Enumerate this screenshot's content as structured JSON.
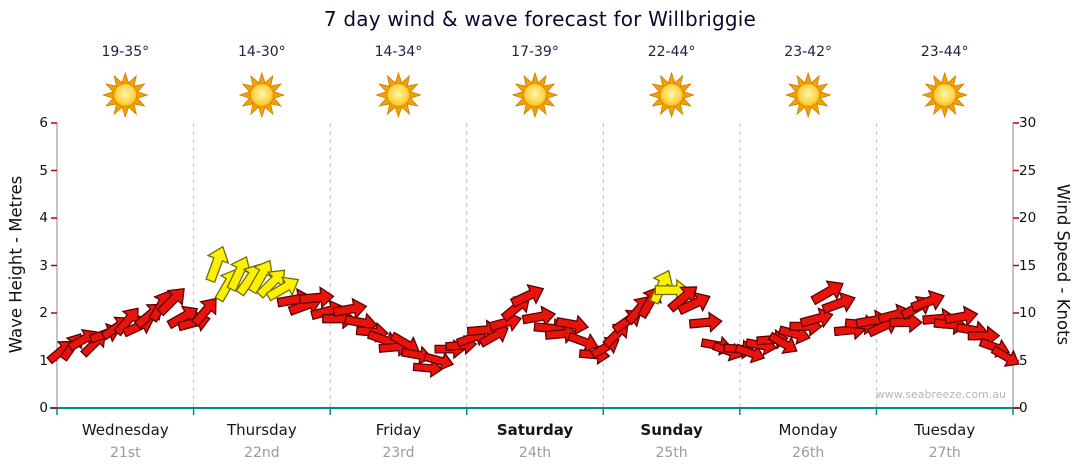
{
  "title": "7 day wind & wave forecast for Willbriggie",
  "watermark": "www.seabreeze.com.au",
  "axis_left": {
    "title": "Wave Height - Metres",
    "ticks": [
      "0",
      "1",
      "2",
      "3",
      "4",
      "5",
      "6"
    ]
  },
  "axis_right": {
    "title": "Wind Speed - Knots",
    "ticks": [
      "0",
      "5",
      "10",
      "15",
      "20",
      "25",
      "30"
    ]
  },
  "days": [
    {
      "name": "Wednesday",
      "date": "21st",
      "temp": "19-35°",
      "weekend": false
    },
    {
      "name": "Thursday",
      "date": "22nd",
      "temp": "14-30°",
      "weekend": false
    },
    {
      "name": "Friday",
      "date": "23rd",
      "temp": "14-34°",
      "weekend": false
    },
    {
      "name": "Saturday",
      "date": "24th",
      "temp": "17-39°",
      "weekend": true
    },
    {
      "name": "Sunday",
      "date": "25th",
      "temp": "22-44°",
      "weekend": true
    },
    {
      "name": "Monday",
      "date": "26th",
      "temp": "23-42°",
      "weekend": false
    },
    {
      "name": "Tuesday",
      "date": "27th",
      "temp": "23-44°",
      "weekend": false
    }
  ],
  "colors": {
    "arrow_red": "#e8140c",
    "arrow_red_outline": "#5e0000",
    "arrow_yellow": "#fff000",
    "arrow_yellow_outline": "#6e6e00",
    "axis_bottom": "#008b8b",
    "axis_side": "#8a8a8a",
    "grid": "#bfbfbf",
    "tick": "#c00000",
    "sun_ray": "#f6a000",
    "sun_core_inner": "#fff6b0",
    "sun_core_outer": "#f7b500"
  },
  "chart_data": {
    "type": "scatter",
    "subtype": "wind-arrow-timeseries",
    "title": "7 day wind & wave forecast for Willbriggie",
    "x_categories": [
      "Wednesday 21st",
      "Thursday 22nd",
      "Friday 23rd",
      "Saturday 24th",
      "Sunday 25th",
      "Monday 26th",
      "Tuesday 27th"
    ],
    "temps_by_day": [
      "19-35°",
      "14-30°",
      "14-34°",
      "17-39°",
      "22-44°",
      "23-42°",
      "23-44°"
    ],
    "y_left": {
      "label": "Wave Height - Metres",
      "range": [
        0,
        6
      ]
    },
    "y_right": {
      "label": "Wind Speed - Knots",
      "range": [
        0,
        30
      ]
    },
    "grid": "vertical-dashed-day-boundaries",
    "point_format": [
      "wind_knots",
      "direction_deg_clockwise_from_up",
      "color r|y"
    ],
    "points": [
      [
        6.0,
        50,
        "r"
      ],
      [
        6.5,
        35,
        "r"
      ],
      [
        7.2,
        60,
        "r"
      ],
      [
        6.8,
        45,
        "r"
      ],
      [
        7.8,
        70,
        "r"
      ],
      [
        8.5,
        55,
        "r"
      ],
      [
        9.2,
        40,
        "r"
      ],
      [
        8.6,
        65,
        "r"
      ],
      [
        9.8,
        50,
        "r"
      ],
      [
        10.8,
        30,
        "r"
      ],
      [
        11.3,
        45,
        "r"
      ],
      [
        9.6,
        60,
        "r"
      ],
      [
        9.0,
        75,
        "r"
      ],
      [
        10.2,
        40,
        "r"
      ],
      [
        15.2,
        20,
        "y"
      ],
      [
        13.0,
        30,
        "y"
      ],
      [
        14.2,
        25,
        "y"
      ],
      [
        13.6,
        35,
        "y"
      ],
      [
        13.9,
        30,
        "y"
      ],
      [
        13.2,
        45,
        "y"
      ],
      [
        12.6,
        60,
        "y"
      ],
      [
        11.4,
        80,
        "r"
      ],
      [
        10.8,
        70,
        "r"
      ],
      [
        11.6,
        85,
        "r"
      ],
      [
        10.2,
        75,
        "r"
      ],
      [
        9.4,
        90,
        "r"
      ],
      [
        10.4,
        80,
        "r"
      ],
      [
        9.0,
        100,
        "r"
      ],
      [
        8.0,
        95,
        "r"
      ],
      [
        7.2,
        110,
        "r"
      ],
      [
        6.4,
        85,
        "r"
      ],
      [
        6.8,
        120,
        "r"
      ],
      [
        5.6,
        100,
        "r"
      ],
      [
        4.2,
        95,
        "r"
      ],
      [
        5.0,
        105,
        "r"
      ],
      [
        6.2,
        90,
        "r"
      ],
      [
        6.6,
        85,
        "r"
      ],
      [
        7.4,
        70,
        "r"
      ],
      [
        8.2,
        85,
        "r"
      ],
      [
        7.6,
        60,
        "r"
      ],
      [
        9.0,
        75,
        "r"
      ],
      [
        10.6,
        50,
        "r"
      ],
      [
        11.8,
        65,
        "r"
      ],
      [
        9.6,
        80,
        "r"
      ],
      [
        8.4,
        95,
        "r"
      ],
      [
        7.8,
        85,
        "r"
      ],
      [
        8.8,
        100,
        "r"
      ],
      [
        7.0,
        110,
        "r"
      ],
      [
        5.6,
        95,
        "r"
      ],
      [
        6.4,
        60,
        "r"
      ],
      [
        7.8,
        45,
        "r"
      ],
      [
        9.2,
        55,
        "r"
      ],
      [
        10.4,
        40,
        "r"
      ],
      [
        11.2,
        30,
        "r"
      ],
      [
        12.8,
        25,
        "y"
      ],
      [
        12.4,
        90,
        "y"
      ],
      [
        11.6,
        50,
        "r"
      ],
      [
        11.0,
        65,
        "r"
      ],
      [
        9.0,
        85,
        "r"
      ],
      [
        6.6,
        100,
        "r"
      ],
      [
        6.0,
        110,
        "r"
      ],
      [
        6.2,
        95,
        "r"
      ],
      [
        5.8,
        110,
        "r"
      ],
      [
        6.6,
        100,
        "r"
      ],
      [
        7.2,
        85,
        "r"
      ],
      [
        6.8,
        120,
        "r"
      ],
      [
        7.8,
        105,
        "r"
      ],
      [
        8.6,
        90,
        "r"
      ],
      [
        9.4,
        75,
        "r"
      ],
      [
        12.2,
        60,
        "r"
      ],
      [
        11.0,
        70,
        "r"
      ],
      [
        8.2,
        85,
        "r"
      ],
      [
        8.8,
        95,
        "r"
      ],
      [
        9.2,
        80,
        "r"
      ],
      [
        8.6,
        65,
        "r"
      ],
      [
        9.8,
        75,
        "r"
      ],
      [
        9.0,
        90,
        "r"
      ],
      [
        10.6,
        60,
        "r"
      ],
      [
        11.2,
        70,
        "r"
      ],
      [
        9.4,
        85,
        "r"
      ],
      [
        8.8,
        95,
        "r"
      ],
      [
        9.6,
        80,
        "r"
      ],
      [
        8.2,
        100,
        "r"
      ],
      [
        7.6,
        90,
        "r"
      ],
      [
        6.4,
        110,
        "r"
      ],
      [
        5.4,
        120,
        "r"
      ]
    ]
  }
}
